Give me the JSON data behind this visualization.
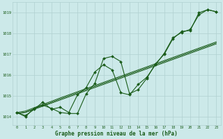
{
  "xlabel": "Graphe pression niveau de la mer (hPa)",
  "ylim": [
    1013.6,
    1019.5
  ],
  "xlim": [
    -0.5,
    23.5
  ],
  "yticks": [
    1014,
    1015,
    1016,
    1017,
    1018,
    1019
  ],
  "xticks": [
    0,
    1,
    2,
    3,
    4,
    5,
    6,
    7,
    8,
    9,
    10,
    11,
    12,
    13,
    14,
    15,
    16,
    17,
    18,
    19,
    20,
    21,
    22,
    23
  ],
  "background_color": "#cce9e9",
  "grid_color": "#b0d0d0",
  "line_color": "#1a5c1a",
  "series_wavy1": [
    1014.2,
    1014.0,
    1014.4,
    1014.55,
    1014.4,
    1014.2,
    1014.15,
    1014.15,
    1015.1,
    1015.6,
    1016.8,
    1016.9,
    1016.65,
    1015.1,
    1015.3,
    1015.85,
    1016.55,
    1017.0,
    1017.75,
    1018.1,
    1018.15,
    1019.0,
    1019.15,
    1019.05
  ],
  "series_wavy2": [
    1014.2,
    1014.05,
    1014.35,
    1014.7,
    1014.35,
    1014.45,
    1014.2,
    1015.05,
    1015.4,
    1016.15,
    1016.5,
    1016.25,
    1015.15,
    1015.05,
    1015.55,
    1015.9,
    1016.5,
    1017.05,
    1017.8,
    1018.05,
    1018.2,
    1018.9,
    1019.15,
    1019.05
  ],
  "series_trend1": [
    1014.15,
    1014.2,
    1014.35,
    1014.5,
    1014.65,
    1014.8,
    1014.95,
    1015.1,
    1015.25,
    1015.4,
    1015.55,
    1015.7,
    1015.85,
    1016.0,
    1016.15,
    1016.3,
    1016.45,
    1016.6,
    1016.75,
    1016.9,
    1017.05,
    1017.2,
    1017.35,
    1017.5
  ],
  "series_trend2": [
    1014.15,
    1014.22,
    1014.38,
    1014.54,
    1014.69,
    1014.85,
    1015.0,
    1015.15,
    1015.3,
    1015.45,
    1015.6,
    1015.75,
    1015.9,
    1016.05,
    1016.2,
    1016.35,
    1016.5,
    1016.65,
    1016.8,
    1016.95,
    1017.1,
    1017.25,
    1017.4,
    1017.55
  ],
  "series_trend3": [
    1014.2,
    1014.27,
    1014.43,
    1014.59,
    1014.74,
    1014.9,
    1015.05,
    1015.2,
    1015.35,
    1015.5,
    1015.65,
    1015.8,
    1015.95,
    1016.1,
    1016.25,
    1016.4,
    1016.55,
    1016.7,
    1016.85,
    1017.0,
    1017.15,
    1017.3,
    1017.45,
    1017.6
  ]
}
